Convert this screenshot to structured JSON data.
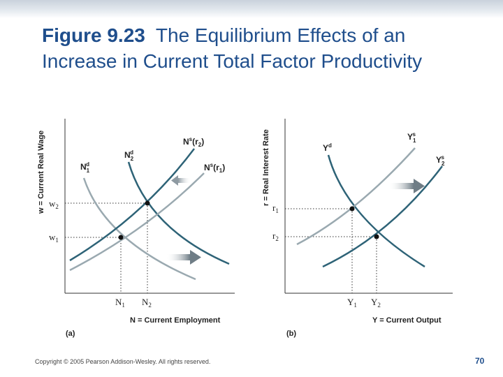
{
  "slide": {
    "title_fig": "Figure 9.23",
    "title_rest": "The Equilibrium Effects of an Increase in Current Total Factor Productivity",
    "footer": "Copyright © 2005 Pearson Addison-Wesley. All rights reserved.",
    "page_number": "70"
  },
  "panel_a": {
    "caption": "(a)",
    "x_axis_label": "N = Current Employment",
    "y_axis_label": "w = Current Real Wage",
    "x_ticks": [
      "N1",
      "N2"
    ],
    "y_ticks": [
      "w1",
      "w2"
    ],
    "curves": [
      "N1d",
      "N2d",
      "Ns(r2)",
      "Ns(r1)"
    ]
  },
  "panel_b": {
    "caption": "(b)",
    "x_axis_label": "Y = Current Output",
    "y_axis_label": "r = Real Interest Rate",
    "x_ticks": [
      "Y1",
      "Y2"
    ],
    "y_ticks": [
      "r1",
      "r2"
    ],
    "curves": [
      "Yd",
      "Y1s",
      "Y2s"
    ]
  },
  "colors": {
    "title": "#1f4e8c",
    "dark_curve": "#2e6377",
    "light_curve": "#9aa9b0",
    "arrow": "#6f7d86"
  }
}
